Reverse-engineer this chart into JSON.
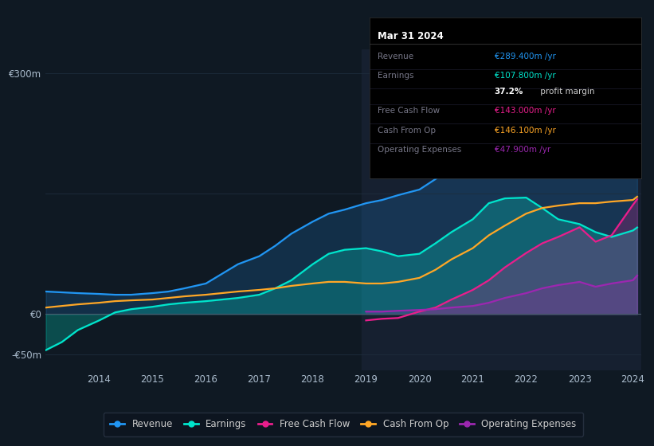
{
  "background_color": "#0f1923",
  "plot_bg_color": "#0f1923",
  "grid_color": "#1e2d3d",
  "text_color": "#8899aa",
  "years": [
    2013.0,
    2013.3,
    2013.6,
    2014.0,
    2014.3,
    2014.6,
    2015.0,
    2015.3,
    2015.6,
    2016.0,
    2016.3,
    2016.6,
    2017.0,
    2017.3,
    2017.6,
    2018.0,
    2018.3,
    2018.6,
    2019.0,
    2019.3,
    2019.6,
    2020.0,
    2020.3,
    2020.6,
    2021.0,
    2021.3,
    2021.6,
    2022.0,
    2022.3,
    2022.6,
    2023.0,
    2023.3,
    2023.6,
    2024.0,
    2024.08
  ],
  "revenue": [
    28,
    27,
    26,
    25,
    24,
    24,
    26,
    28,
    32,
    38,
    50,
    62,
    72,
    85,
    100,
    115,
    125,
    130,
    138,
    142,
    148,
    155,
    168,
    183,
    200,
    218,
    233,
    248,
    258,
    262,
    268,
    273,
    278,
    285,
    289.4
  ],
  "earnings": [
    -45,
    -35,
    -20,
    -8,
    2,
    6,
    9,
    12,
    14,
    16,
    18,
    20,
    24,
    32,
    42,
    62,
    75,
    80,
    82,
    78,
    72,
    75,
    88,
    102,
    118,
    138,
    144,
    145,
    132,
    118,
    112,
    102,
    96,
    104,
    107.8
  ],
  "free_cash_flow": [
    null,
    null,
    null,
    null,
    null,
    null,
    null,
    null,
    null,
    null,
    null,
    null,
    null,
    null,
    null,
    null,
    null,
    null,
    -8,
    -6,
    -5,
    3,
    8,
    18,
    30,
    42,
    58,
    76,
    88,
    96,
    108,
    90,
    98,
    136,
    143.0
  ],
  "cash_from_op": [
    8,
    10,
    12,
    14,
    16,
    17,
    18,
    20,
    22,
    24,
    26,
    28,
    30,
    32,
    35,
    38,
    40,
    40,
    38,
    38,
    40,
    45,
    55,
    68,
    82,
    98,
    110,
    125,
    132,
    135,
    138,
    138,
    140,
    142,
    146.1
  ],
  "operating_expenses": [
    null,
    null,
    null,
    null,
    null,
    null,
    null,
    null,
    null,
    null,
    null,
    null,
    null,
    null,
    null,
    null,
    null,
    null,
    3,
    3,
    4,
    5,
    6,
    8,
    10,
    14,
    20,
    26,
    32,
    36,
    40,
    34,
    38,
    42,
    47.9
  ],
  "revenue_color": "#2196f3",
  "earnings_color": "#00e5cc",
  "fcf_color": "#e91e8c",
  "cash_op_color": "#ffa726",
  "op_exp_color": "#9c27b0",
  "ylim": [
    -70,
    330
  ],
  "xtick_years": [
    2014,
    2015,
    2016,
    2017,
    2018,
    2019,
    2020,
    2021,
    2022,
    2023,
    2024
  ],
  "info_box_title": "Mar 31 2024",
  "info_rows": [
    {
      "label": "Revenue",
      "value": "€289.400m /yr",
      "value_color": "#2196f3"
    },
    {
      "label": "Earnings",
      "value": "€107.800m /yr",
      "value_color": "#00e5cc"
    },
    {
      "label": "",
      "value": "profit margin",
      "value_color": "#cccccc",
      "prefix": "37.2%"
    },
    {
      "label": "Free Cash Flow",
      "value": "€143.000m /yr",
      "value_color": "#e91e8c"
    },
    {
      "label": "Cash From Op",
      "value": "€146.100m /yr",
      "value_color": "#ffa726"
    },
    {
      "label": "Operating Expenses",
      "value": "€47.900m /yr",
      "value_color": "#9c27b0"
    }
  ],
  "legend_items": [
    {
      "label": "Revenue",
      "color": "#2196f3"
    },
    {
      "label": "Earnings",
      "color": "#00e5cc"
    },
    {
      "label": "Free Cash Flow",
      "color": "#e91e8c"
    },
    {
      "label": "Cash From Op",
      "color": "#ffa726"
    },
    {
      "label": "Operating Expenses",
      "color": "#9c27b0"
    }
  ]
}
